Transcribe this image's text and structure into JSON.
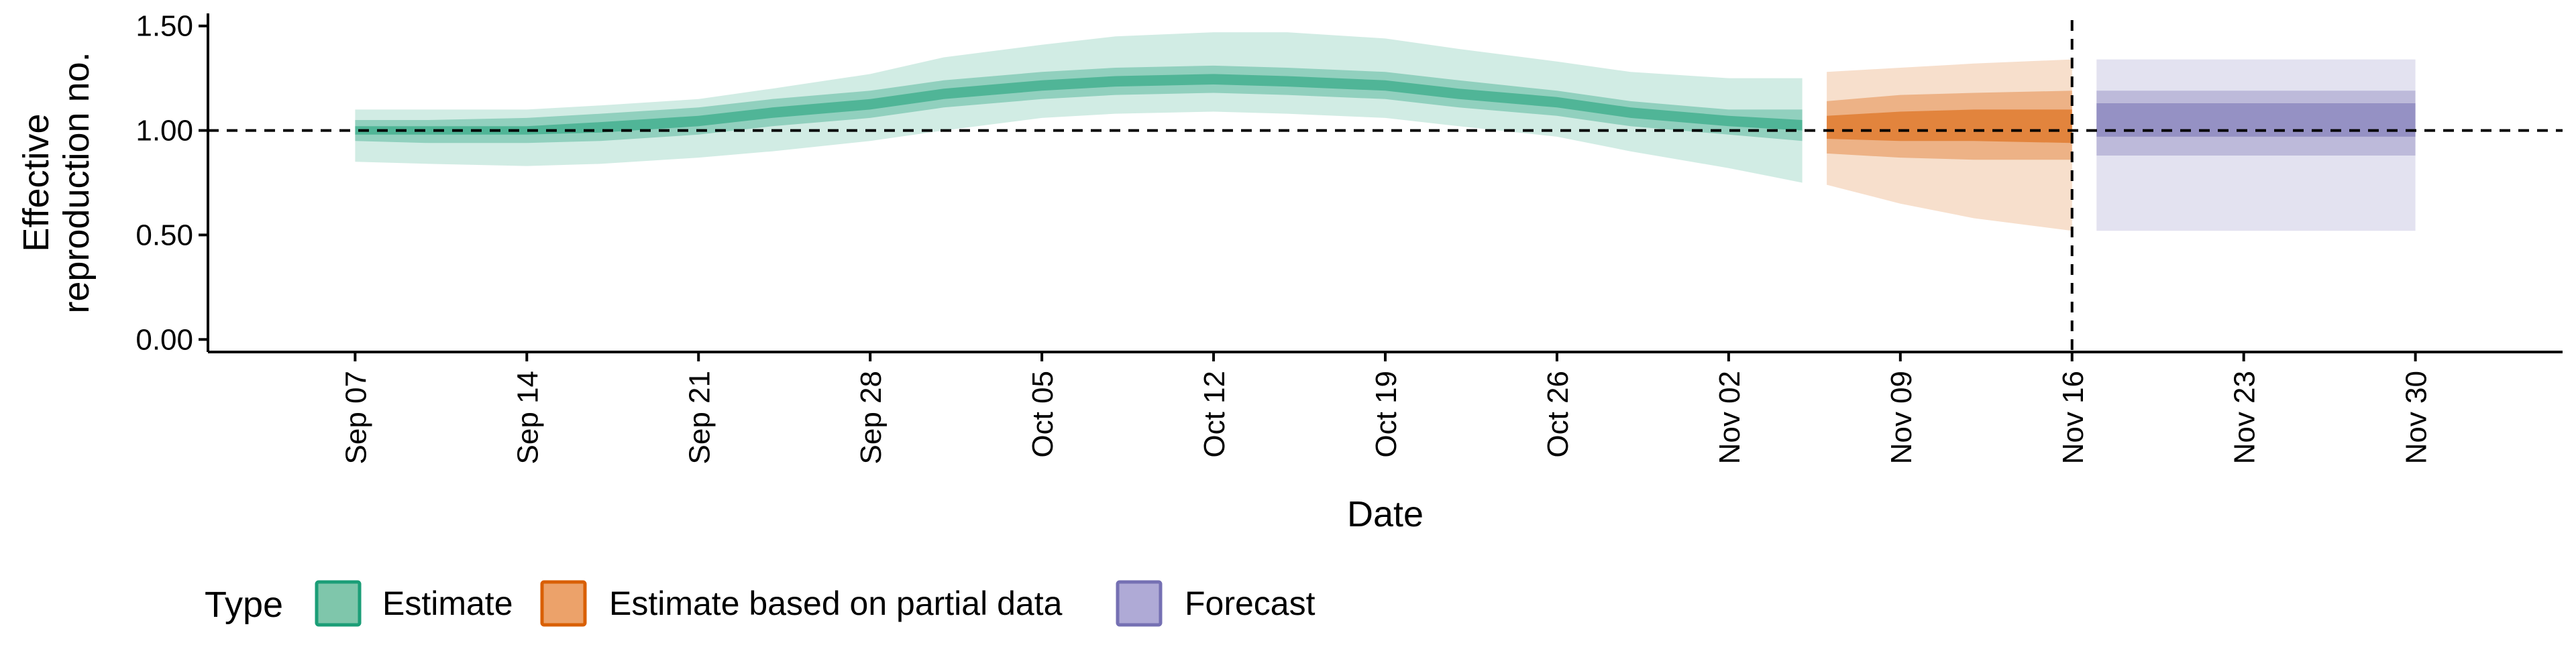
{
  "chart_data": {
    "type": "area",
    "title": "",
    "xlabel": "Date",
    "ylabel_lines": [
      "Effective",
      "reproduction no."
    ],
    "y_ticks": [
      0.0,
      0.5,
      1.0,
      1.5
    ],
    "y_tick_labels": [
      "0.00",
      "0.50",
      "1.00",
      "1.50"
    ],
    "ylim": [
      -0.06,
      1.56
    ],
    "xlim": [
      "2020-09-01",
      "2020-12-06"
    ],
    "x_ticks": [
      "2020-09-07",
      "2020-09-14",
      "2020-09-21",
      "2020-09-28",
      "2020-10-05",
      "2020-10-12",
      "2020-10-19",
      "2020-10-26",
      "2020-11-02",
      "2020-11-09",
      "2020-11-16",
      "2020-11-23",
      "2020-11-30"
    ],
    "x_tick_labels": [
      "Sep 07",
      "Sep 14",
      "Sep 21",
      "Sep 28",
      "Oct 05",
      "Oct 12",
      "Oct 19",
      "Oct 26",
      "Nov 02",
      "Nov 09",
      "Nov 16",
      "Nov 23",
      "Nov 30"
    ],
    "reference_hline": 1.0,
    "reference_vline": "2020-11-16",
    "grid": false,
    "legend": {
      "title": "Type",
      "position": "bottom-left",
      "entries": [
        {
          "label": "Estimate",
          "fill": "#7fc6ab",
          "border": "#1b9e77"
        },
        {
          "label": "Estimate based on partial data",
          "fill": "#eca26a",
          "border": "#d95f02"
        },
        {
          "label": "Forecast",
          "fill": "#afaad6",
          "border": "#7570b3"
        }
      ]
    },
    "series": [
      {
        "name": "Estimate",
        "color": "#1b9e77",
        "band_opacity": [
          0.2,
          0.35,
          0.55
        ],
        "x": [
          "2020-09-07",
          "2020-09-10",
          "2020-09-14",
          "2020-09-17",
          "2020-09-21",
          "2020-09-24",
          "2020-09-28",
          "2020-10-01",
          "2020-10-05",
          "2020-10-08",
          "2020-10-12",
          "2020-10-15",
          "2020-10-19",
          "2020-10-22",
          "2020-10-26",
          "2020-10-29",
          "2020-11-02",
          "2020-11-05"
        ],
        "bands": [
          {
            "lower": [
              0.85,
              0.84,
              0.83,
              0.84,
              0.87,
              0.9,
              0.95,
              1.0,
              1.06,
              1.08,
              1.09,
              1.08,
              1.06,
              1.02,
              0.97,
              0.9,
              0.82,
              0.75
            ],
            "upper": [
              1.1,
              1.1,
              1.1,
              1.12,
              1.15,
              1.2,
              1.27,
              1.35,
              1.41,
              1.45,
              1.47,
              1.47,
              1.44,
              1.39,
              1.33,
              1.28,
              1.25,
              1.25
            ]
          },
          {
            "lower": [
              0.95,
              0.94,
              0.94,
              0.95,
              0.98,
              1.02,
              1.06,
              1.11,
              1.15,
              1.17,
              1.18,
              1.17,
              1.15,
              1.11,
              1.07,
              1.02,
              0.98,
              0.95
            ],
            "upper": [
              1.05,
              1.05,
              1.06,
              1.08,
              1.11,
              1.15,
              1.19,
              1.24,
              1.28,
              1.3,
              1.31,
              1.3,
              1.28,
              1.24,
              1.19,
              1.14,
              1.1,
              1.1
            ]
          },
          {
            "lower": [
              0.98,
              0.98,
              0.98,
              0.99,
              1.02,
              1.06,
              1.1,
              1.15,
              1.19,
              1.21,
              1.22,
              1.21,
              1.19,
              1.15,
              1.11,
              1.06,
              1.02,
              1.0
            ],
            "upper": [
              1.02,
              1.02,
              1.02,
              1.04,
              1.07,
              1.11,
              1.15,
              1.2,
              1.24,
              1.26,
              1.27,
              1.26,
              1.24,
              1.2,
              1.16,
              1.11,
              1.07,
              1.05
            ]
          }
        ]
      },
      {
        "name": "Estimate based on partial data",
        "color": "#d95f02",
        "band_opacity": [
          0.2,
          0.35,
          0.55
        ],
        "x": [
          "2020-11-06",
          "2020-11-09",
          "2020-11-12",
          "2020-11-16"
        ],
        "bands": [
          {
            "lower": [
              0.74,
              0.65,
              0.58,
              0.52
            ],
            "upper": [
              1.28,
              1.3,
              1.32,
              1.34
            ]
          },
          {
            "lower": [
              0.89,
              0.87,
              0.86,
              0.86
            ],
            "upper": [
              1.14,
              1.17,
              1.18,
              1.19
            ]
          },
          {
            "lower": [
              0.96,
              0.95,
              0.95,
              0.94
            ],
            "upper": [
              1.07,
              1.09,
              1.1,
              1.1
            ]
          }
        ]
      },
      {
        "name": "Forecast",
        "color": "#7570b3",
        "band_opacity": [
          0.2,
          0.35,
          0.55
        ],
        "x": [
          "2020-11-17",
          "2020-11-30"
        ],
        "bands": [
          {
            "lower": [
              0.52,
              0.52
            ],
            "upper": [
              1.34,
              1.34
            ]
          },
          {
            "lower": [
              0.88,
              0.88
            ],
            "upper": [
              1.19,
              1.19
            ]
          },
          {
            "lower": [
              0.97,
              0.97
            ],
            "upper": [
              1.13,
              1.13
            ]
          }
        ]
      }
    ]
  }
}
